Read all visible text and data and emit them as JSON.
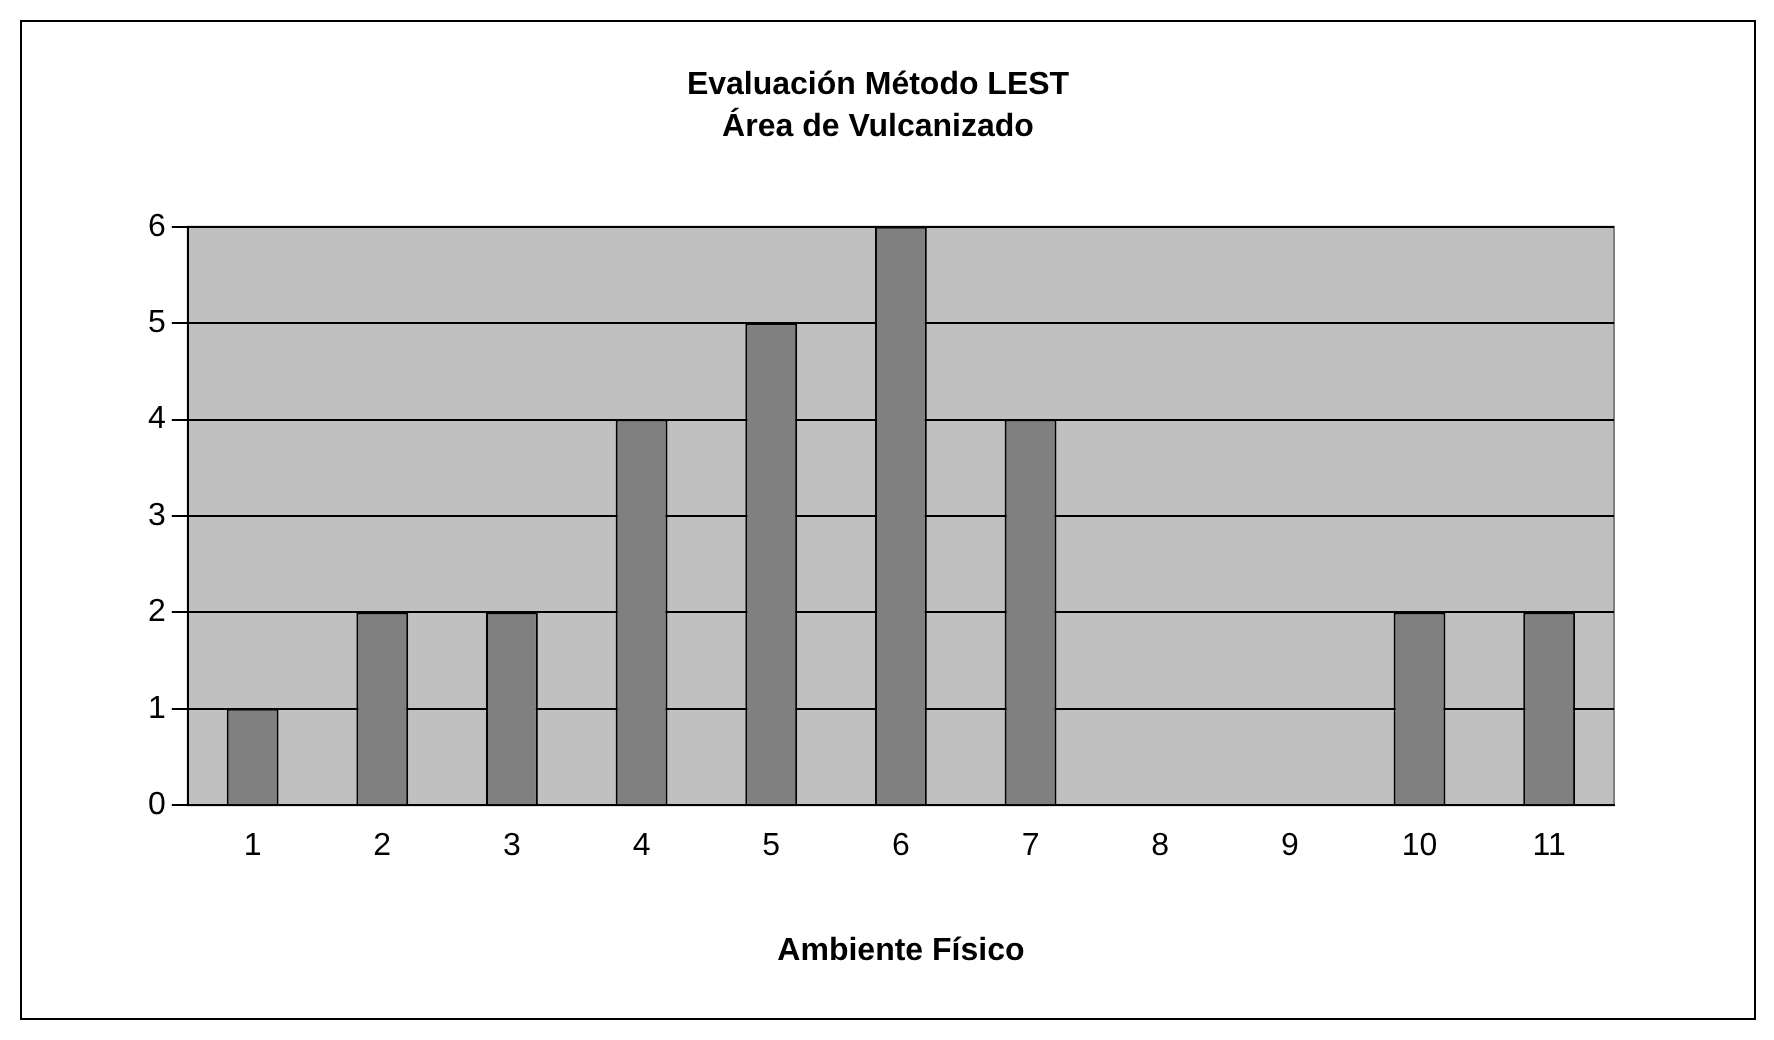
{
  "chart_data": {
    "type": "bar",
    "title": "Evaluación Método LEST",
    "subtitle": "Área de Vulcanizado",
    "xlabel": "Ambiente Físico",
    "categories": [
      "1",
      "2",
      "3",
      "4",
      "5",
      "6",
      "7",
      "8",
      "9",
      "10",
      "11"
    ],
    "values": [
      1,
      2,
      2,
      4,
      5,
      6,
      4,
      0,
      0,
      2,
      2
    ],
    "color": "#808080",
    "ylim": [
      0,
      6
    ],
    "yticks": [
      0,
      1,
      2,
      3,
      4,
      5,
      6
    ],
    "grid": "y",
    "legend": false
  }
}
